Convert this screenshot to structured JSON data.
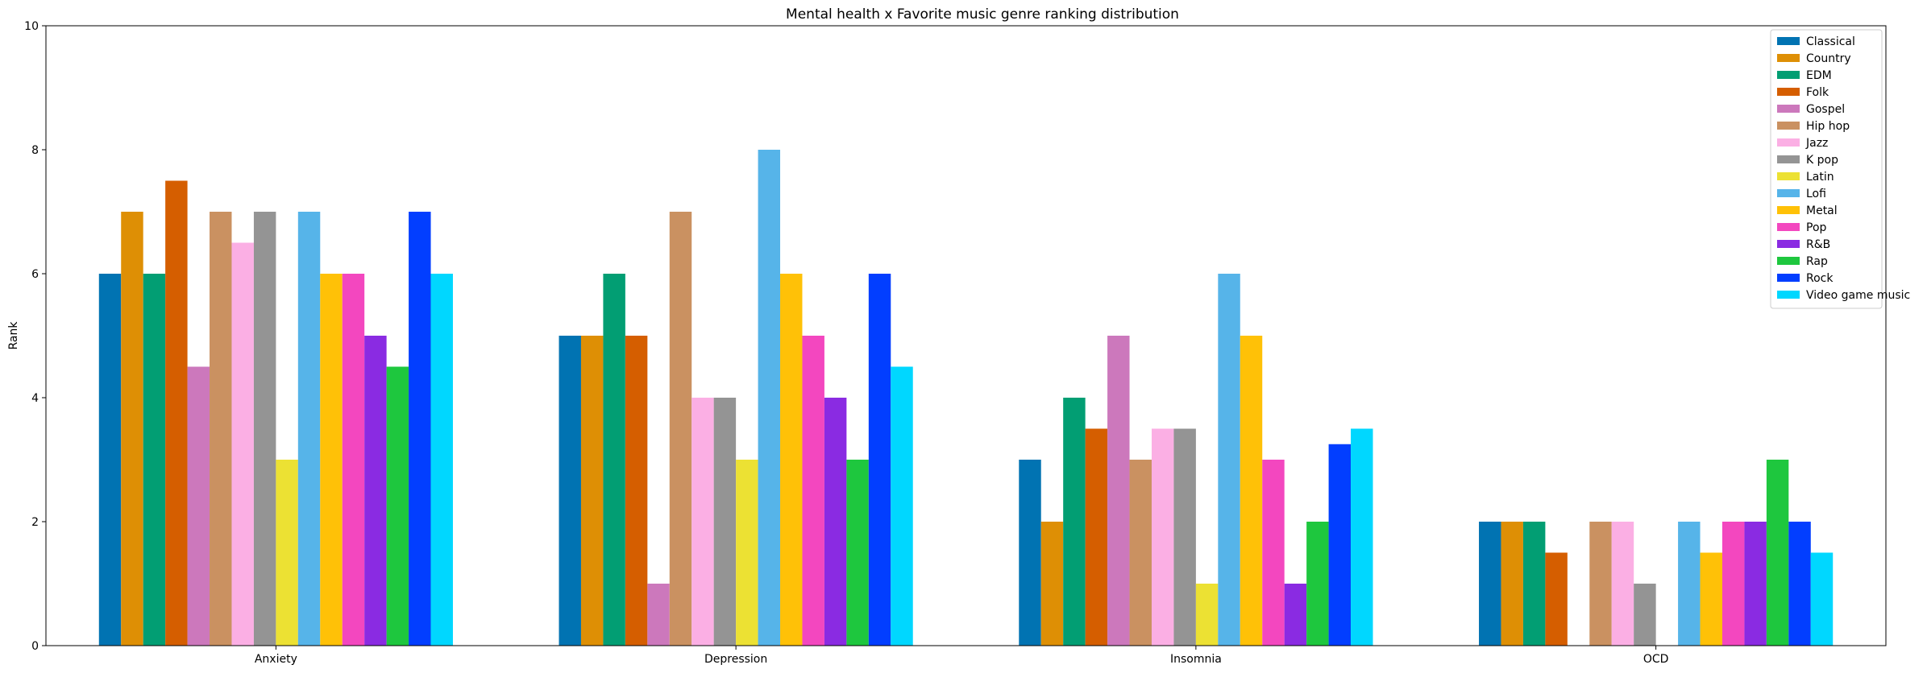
{
  "chart_data": {
    "type": "bar",
    "title": "Mental health x Favorite music genre ranking distribution",
    "xlabel": "",
    "ylabel": "Rank",
    "ylim": [
      0,
      10
    ],
    "yticks": [
      0,
      2,
      4,
      6,
      8,
      10
    ],
    "grid": false,
    "legend_position": "top-right",
    "categories": [
      "Anxiety",
      "Depression",
      "Insomnia",
      "OCD"
    ],
    "series": [
      {
        "name": "Classical",
        "color": "#0173b2",
        "values": [
          6,
          5,
          3,
          2
        ]
      },
      {
        "name": "Country",
        "color": "#de8f05",
        "values": [
          7,
          5,
          2,
          2
        ]
      },
      {
        "name": "EDM",
        "color": "#029e73",
        "values": [
          6,
          6,
          4,
          2
        ]
      },
      {
        "name": "Folk",
        "color": "#d55e00",
        "values": [
          7.5,
          5,
          3.5,
          1.5
        ]
      },
      {
        "name": "Gospel",
        "color": "#cc78bc",
        "values": [
          4.5,
          1,
          5,
          0
        ]
      },
      {
        "name": "Hip hop",
        "color": "#ca9161",
        "values": [
          7,
          7,
          3,
          2
        ]
      },
      {
        "name": "Jazz",
        "color": "#fbafe4",
        "values": [
          6.5,
          4,
          3.5,
          2
        ]
      },
      {
        "name": "K pop",
        "color": "#949494",
        "values": [
          7,
          4,
          3.5,
          1
        ]
      },
      {
        "name": "Latin",
        "color": "#ece133",
        "values": [
          3,
          3,
          1,
          0
        ]
      },
      {
        "name": "Lofi",
        "color": "#56b4e9",
        "values": [
          7,
          8,
          6,
          2
        ]
      },
      {
        "name": "Metal",
        "color": "#ffc107",
        "values": [
          6,
          6,
          5,
          1.5
        ]
      },
      {
        "name": "Pop",
        "color": "#f347bf",
        "values": [
          6,
          5,
          3,
          2
        ]
      },
      {
        "name": "R&B",
        "color": "#8a2be2",
        "values": [
          5,
          4,
          1,
          2
        ]
      },
      {
        "name": "Rap",
        "color": "#1ec73e",
        "values": [
          4.5,
          3,
          2,
          3
        ]
      },
      {
        "name": "Rock",
        "color": "#023eff",
        "values": [
          7,
          6,
          3.25,
          2
        ]
      },
      {
        "name": "Video game music",
        "color": "#00d7ff",
        "values": [
          6,
          4.5,
          3.5,
          1.5
        ]
      }
    ]
  }
}
